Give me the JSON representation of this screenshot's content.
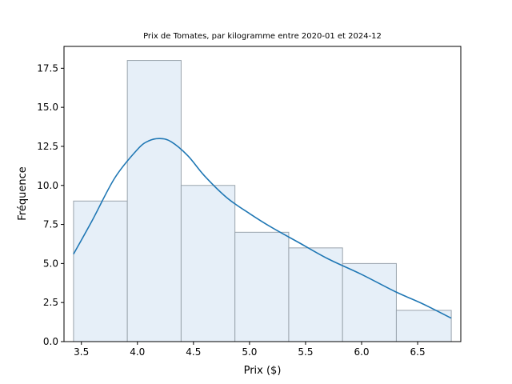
{
  "chart_data": {
    "type": "bar",
    "title": "Prix de Tomates, par kilogramme entre 2020-01 et 2024-12",
    "xlabel": "Prix ($)",
    "ylabel": "Fréquence",
    "xlim": [
      3.345,
      6.885
    ],
    "ylim": [
      0,
      18.9
    ],
    "x_ticks": [
      3.5,
      4.0,
      4.5,
      5.0,
      5.5,
      6.0,
      6.5
    ],
    "y_ticks": [
      0.0,
      2.5,
      5.0,
      7.5,
      10.0,
      12.5,
      15.0,
      17.5
    ],
    "grid": false,
    "bins": [
      {
        "start": 3.43,
        "end": 3.91,
        "value": 9
      },
      {
        "start": 3.91,
        "end": 4.39,
        "value": 18
      },
      {
        "start": 4.39,
        "end": 4.87,
        "value": 10
      },
      {
        "start": 4.87,
        "end": 5.35,
        "value": 7
      },
      {
        "start": 5.35,
        "end": 5.83,
        "value": 6
      },
      {
        "start": 5.83,
        "end": 6.31,
        "value": 5
      },
      {
        "start": 6.31,
        "end": 6.8,
        "value": 2
      }
    ],
    "kde": {
      "x": [
        3.43,
        3.6,
        3.8,
        4.0,
        4.1,
        4.2,
        4.3,
        4.45,
        4.6,
        4.8,
        5.0,
        5.2,
        5.45,
        5.7,
        6.0,
        6.3,
        6.55,
        6.8
      ],
      "y": [
        5.6,
        7.8,
        10.5,
        12.3,
        12.85,
        13.0,
        12.8,
        11.9,
        10.6,
        9.2,
        8.2,
        7.3,
        6.3,
        5.3,
        4.3,
        3.2,
        2.4,
        1.5
      ]
    },
    "colors": {
      "bar_fill": "#e6eff8",
      "bar_edge": "#9aa4ad",
      "line": "#1f77b4"
    }
  }
}
